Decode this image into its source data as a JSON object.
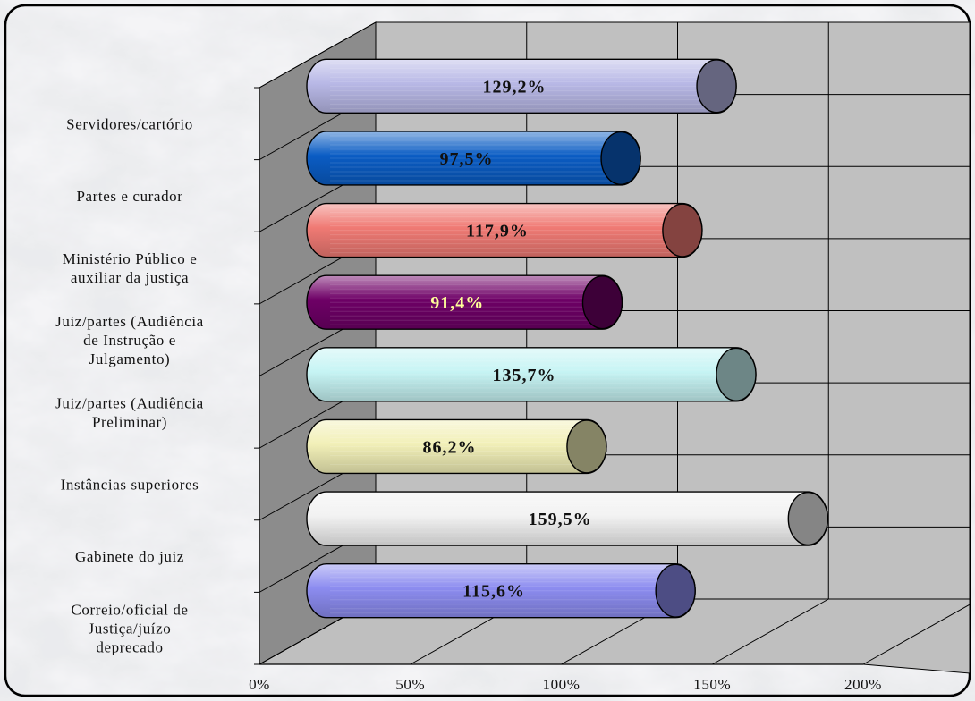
{
  "chart_data": {
    "type": "bar",
    "orientation": "horizontal",
    "three_d": true,
    "categories": [
      [
        "Servidores/cartório"
      ],
      [
        "Partes e curador"
      ],
      [
        "Ministério Público e",
        "auxiliar da justiça"
      ],
      [
        "Juiz/partes (Audiência",
        "de Instrução e",
        "Julgamento)"
      ],
      [
        "Juiz/partes (Audiência",
        "Preliminar)"
      ],
      [
        "Instâncias superiores"
      ],
      [
        "Gabinete do juiz"
      ],
      [
        "Correio/oficial de",
        "Justiça/juízo",
        "deprecado"
      ]
    ],
    "values": [
      129.2,
      97.5,
      117.9,
      91.4,
      135.7,
      86.2,
      159.5,
      115.6
    ],
    "data_labels": [
      "129,2%",
      "97,5%",
      "117,9%",
      "91,4%",
      "135,7%",
      "86,2%",
      "159,5%",
      "115,6%"
    ],
    "bar_colors": [
      "#b8b8e6",
      "#0a5cc4",
      "#f07a74",
      "#6e0066",
      "#c6f4f4",
      "#f2f0b8",
      "#f2f2f2",
      "#8c8cf0"
    ],
    "label_colors": [
      "#111111",
      "#111111",
      "#111111",
      "#ffff99",
      "#111111",
      "#111111",
      "#111111",
      "#111111"
    ],
    "x_ticks": [
      "0%",
      "50%",
      "100%",
      "150%",
      "200%"
    ],
    "xlim": [
      0,
      200
    ],
    "grid": true,
    "legend": "none"
  }
}
